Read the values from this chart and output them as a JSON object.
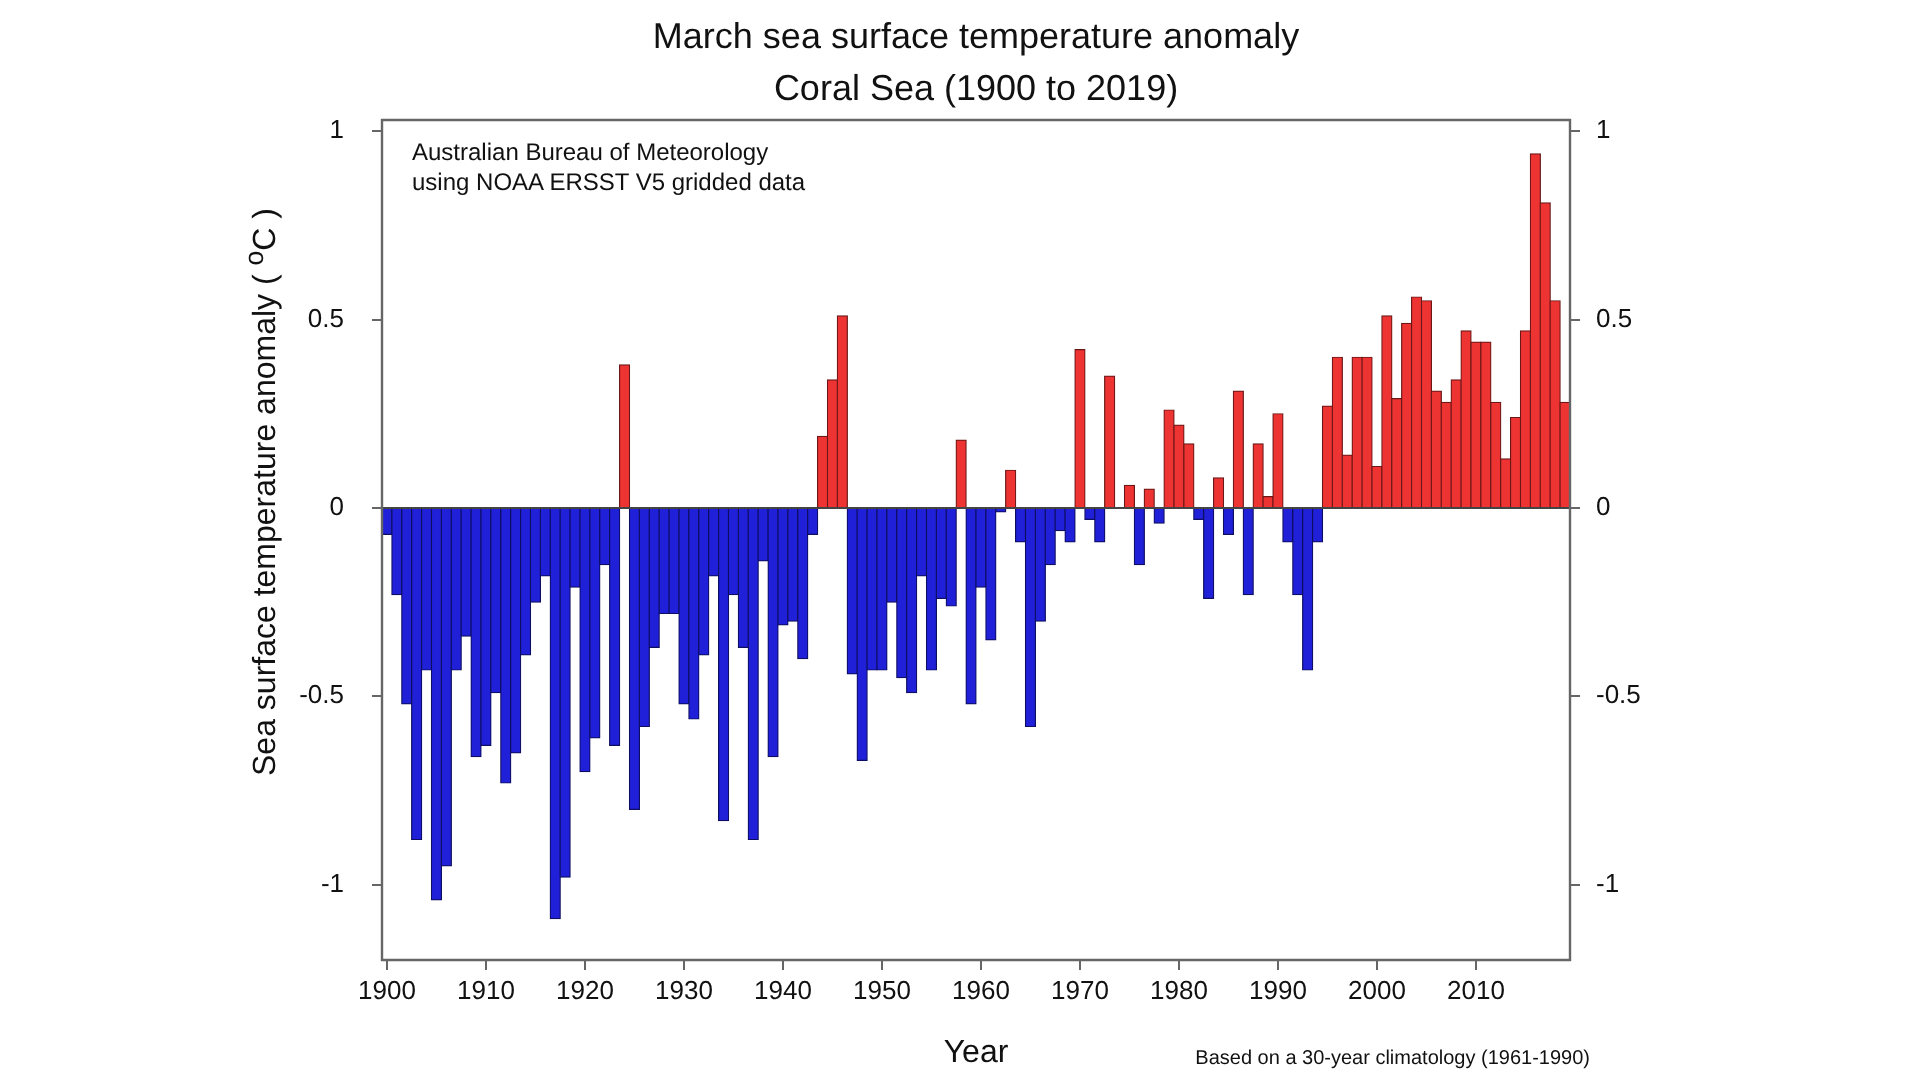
{
  "chart_data": {
    "type": "bar",
    "title": "March sea surface temperature anomaly",
    "subtitle": "Coral Sea (1900 to 2019)",
    "xlabel": "Year",
    "ylabel": "Sea surface temperature anomaly ( $^{o}$C )",
    "annotations": [
      "Australian Bureau of Meteorology",
      "using NOAA ERSST V5 gridded data",
      "Based on a 30-year climatology (1961-1990)"
    ],
    "x": [
      1900,
      1901,
      1902,
      1903,
      1904,
      1905,
      1906,
      1907,
      1908,
      1909,
      1910,
      1911,
      1912,
      1913,
      1914,
      1915,
      1916,
      1917,
      1918,
      1919,
      1920,
      1921,
      1922,
      1923,
      1924,
      1925,
      1926,
      1927,
      1928,
      1929,
      1930,
      1931,
      1932,
      1933,
      1934,
      1935,
      1936,
      1937,
      1938,
      1939,
      1940,
      1941,
      1942,
      1943,
      1944,
      1945,
      1946,
      1947,
      1948,
      1949,
      1950,
      1951,
      1952,
      1953,
      1954,
      1955,
      1956,
      1957,
      1958,
      1959,
      1960,
      1961,
      1962,
      1963,
      1964,
      1965,
      1966,
      1967,
      1968,
      1969,
      1970,
      1971,
      1972,
      1973,
      1974,
      1975,
      1976,
      1977,
      1978,
      1979,
      1980,
      1981,
      1982,
      1983,
      1984,
      1985,
      1986,
      1987,
      1988,
      1989,
      1990,
      1991,
      1992,
      1993,
      1994,
      1995,
      1996,
      1997,
      1998,
      1999,
      2000,
      2001,
      2002,
      2003,
      2004,
      2005,
      2006,
      2007,
      2008,
      2009,
      2010,
      2011,
      2012,
      2013,
      2014,
      2015,
      2016,
      2017,
      2018,
      2019
    ],
    "values": [
      -0.07,
      -0.23,
      -0.52,
      -0.88,
      -0.43,
      -1.04,
      -0.95,
      -0.43,
      -0.34,
      -0.66,
      -0.63,
      -0.49,
      -0.73,
      -0.65,
      -0.39,
      -0.25,
      -0.18,
      -1.09,
      -0.98,
      -0.21,
      -0.7,
      -0.61,
      -0.15,
      -0.63,
      0.38,
      -0.8,
      -0.58,
      -0.37,
      -0.28,
      -0.28,
      -0.52,
      -0.56,
      -0.39,
      -0.18,
      -0.83,
      -0.23,
      -0.37,
      -0.88,
      -0.14,
      -0.66,
      -0.31,
      -0.3,
      -0.4,
      -0.07,
      0.19,
      0.34,
      0.51,
      -0.44,
      -0.67,
      -0.43,
      -0.43,
      -0.25,
      -0.45,
      -0.49,
      -0.18,
      -0.43,
      -0.24,
      -0.26,
      0.18,
      -0.52,
      -0.21,
      -0.35,
      -0.01,
      0.1,
      -0.09,
      -0.58,
      -0.3,
      -0.15,
      -0.06,
      -0.09,
      0.42,
      -0.03,
      -0.09,
      0.35,
      0,
      0.06,
      -0.15,
      0.05,
      -0.04,
      0.26,
      0.22,
      0.17,
      -0.03,
      -0.24,
      0.08,
      -0.07,
      0.31,
      -0.23,
      0.17,
      0.03,
      0.25,
      -0.09,
      -0.23,
      -0.43,
      -0.09,
      0.27,
      0.4,
      0.14,
      0.4,
      0.4,
      0.11,
      0.51,
      0.29,
      0.49,
      0.56,
      0.55,
      0.31,
      0.28,
      0.34,
      0.47,
      0.44,
      0.44,
      0.28,
      0.13,
      0.24,
      0.47,
      0.94,
      0.81,
      0.55,
      0.28
    ],
    "colors": [
      "#2020d8",
      "#2020d8",
      "#2020d8",
      "#2020d8",
      "#2020d8",
      "#2020d8",
      "#2020d8",
      "#2020d8",
      "#2020d8",
      "#2020d8",
      "#2020d8",
      "#2020d8",
      "#2020d8",
      "#2020d8",
      "#2020d8",
      "#2020d8",
      "#2020d8",
      "#2020d8",
      "#2020d8",
      "#2020d8",
      "#2020d8",
      "#2020d8",
      "#2020d8",
      "#2020d8",
      "#ee3333",
      "#2020d8",
      "#2020d8",
      "#2020d8",
      "#2020d8",
      "#2020d8",
      "#2020d8",
      "#2020d8",
      "#2020d8",
      "#2020d8",
      "#2020d8",
      "#2020d8",
      "#2020d8",
      "#2020d8",
      "#2020d8",
      "#2020d8",
      "#2020d8",
      "#2020d8",
      "#2020d8",
      "#2020d8",
      "#ee3333",
      "#ee3333",
      "#ee3333",
      "#2020d8",
      "#2020d8",
      "#2020d8",
      "#2020d8",
      "#2020d8",
      "#2020d8",
      "#2020d8",
      "#2020d8",
      "#2020d8",
      "#2020d8",
      "#2020d8",
      "#ee3333",
      "#2020d8",
      "#2020d8",
      "#2020d8",
      "#2020d8",
      "#ee3333",
      "#2020d8",
      "#2020d8",
      "#2020d8",
      "#2020d8",
      "#2020d8",
      "#2020d8",
      "#ee3333",
      "#2020d8",
      "#2020d8",
      "#ee3333",
      "#ee3333",
      "#ee3333",
      "#2020d8",
      "#ee3333",
      "#2020d8",
      "#ee3333",
      "#ee3333",
      "#ee3333",
      "#2020d8",
      "#2020d8",
      "#ee3333",
      "#2020d8",
      "#ee3333",
      "#2020d8",
      "#ee3333",
      "#ee3333",
      "#ee3333",
      "#2020d8",
      "#2020d8",
      "#2020d8",
      "#2020d8",
      "#ee3333",
      "#ee3333",
      "#ee3333",
      "#ee3333",
      "#ee3333",
      "#ee3333",
      "#ee3333",
      "#ee3333",
      "#ee3333",
      "#ee3333",
      "#ee3333",
      "#ee3333",
      "#ee3333",
      "#ee3333",
      "#ee3333",
      "#ee3333",
      "#ee3333",
      "#ee3333",
      "#ee3333",
      "#ee3333",
      "#ee3333",
      "#ee3333",
      "#ee3333",
      "#ee3333",
      "#ee3333"
    ],
    "xlim": [
      1899.5,
      2019.5
    ],
    "xticks": [
      1900,
      1910,
      1920,
      1930,
      1940,
      1950,
      1960,
      1970,
      1980,
      1990,
      2000,
      2010
    ],
    "ylim": [
      -1.2,
      1.03
    ],
    "yticks": [
      -1,
      -0.5,
      0,
      0.5,
      1
    ],
    "y2lim": [
      -1.2,
      1.03
    ],
    "y2ticks": [
      -1,
      -0.5,
      0,
      0.5,
      1
    ],
    "ref_lines": [
      {
        "axis": "y",
        "value": 0
      }
    ]
  }
}
